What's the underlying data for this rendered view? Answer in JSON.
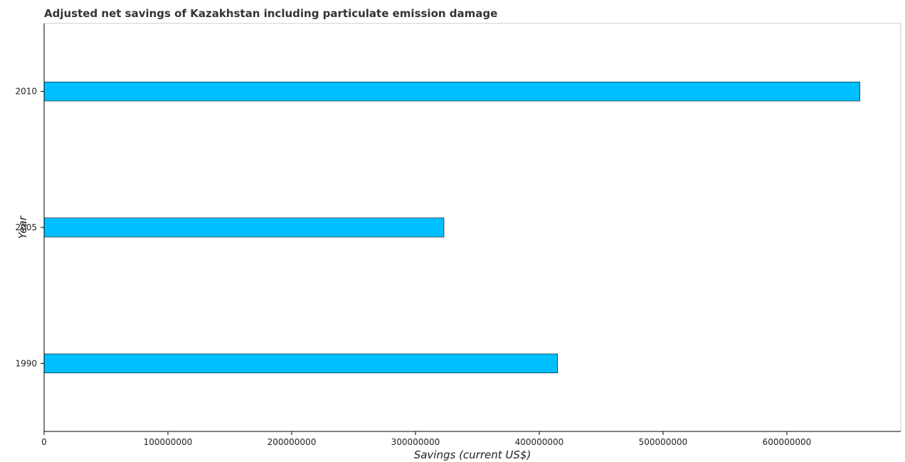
{
  "chart_data": {
    "type": "bar",
    "orientation": "horizontal",
    "title": "Adjusted net savings of Kazakhstan including particulate emission damage",
    "xlabel": "Savings (current US$)",
    "ylabel": "Year",
    "categories": [
      "1990",
      "2005",
      "2010"
    ],
    "values": [
      414800000,
      323000000,
      659000000
    ],
    "xlim": [
      0,
      692000000
    ],
    "xticks": [
      0,
      100000000,
      200000000,
      300000000,
      400000000,
      500000000,
      600000000
    ],
    "xtick_labels": [
      "0",
      "100000000",
      "200000000",
      "300000000",
      "400000000",
      "500000000",
      "600000000"
    ],
    "bar_color": "#00bfff",
    "grid": false,
    "legend": "none"
  }
}
